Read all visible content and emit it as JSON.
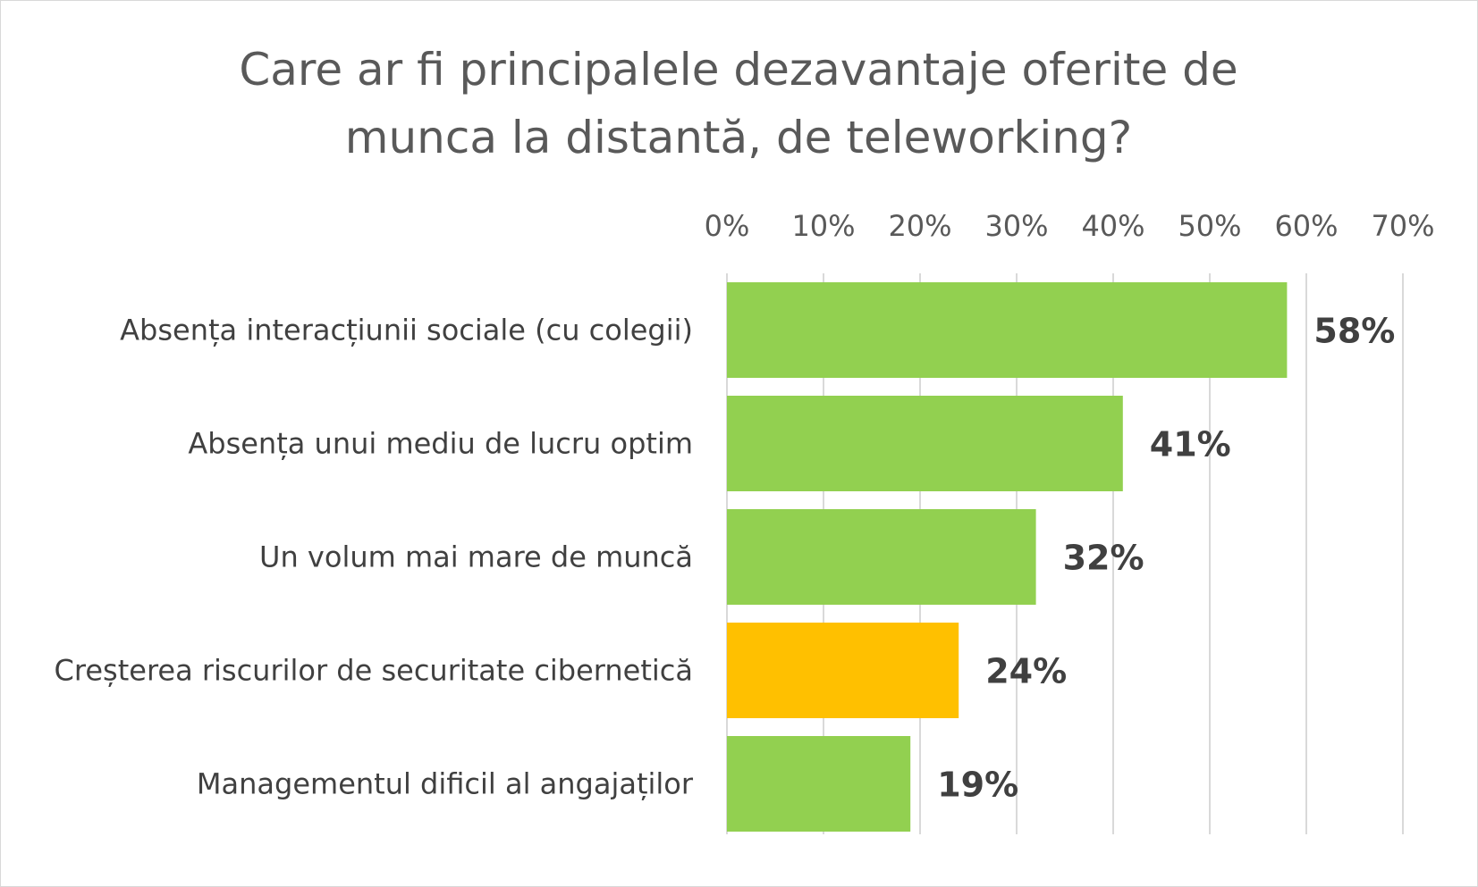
{
  "chart_data": {
    "type": "bar",
    "orientation": "horizontal",
    "title": "Care ar fi principalele dezavantaje oferite de munca la distantă, de teleworking?",
    "title_lines": [
      "Care ar fi principalele dezavantaje oferite de",
      "munca la distantă, de teleworking?"
    ],
    "categories": [
      "Absența interacțiunii sociale (cu colegii)",
      "Absența unui mediu de lucru optim",
      "Un volum mai mare de muncă",
      "Creșterea riscurilor de securitate cibernetică",
      "Managementul dificil al angajaților"
    ],
    "values": [
      58,
      41,
      32,
      24,
      19
    ],
    "value_labels": [
      "58%",
      "41%",
      "32%",
      "24%",
      "19%"
    ],
    "bar_colors": [
      "#92d050",
      "#92d050",
      "#92d050",
      "#ffc000",
      "#92d050"
    ],
    "xlim": [
      0,
      70
    ],
    "ticks": [
      0,
      10,
      20,
      30,
      40,
      50,
      60,
      70
    ],
    "tick_labels": [
      "0%",
      "10%",
      "20%",
      "30%",
      "40%",
      "50%",
      "60%",
      "70%"
    ],
    "axis_position": "top",
    "grid": true,
    "legend": "none",
    "xlabel": "",
    "ylabel": ""
  }
}
